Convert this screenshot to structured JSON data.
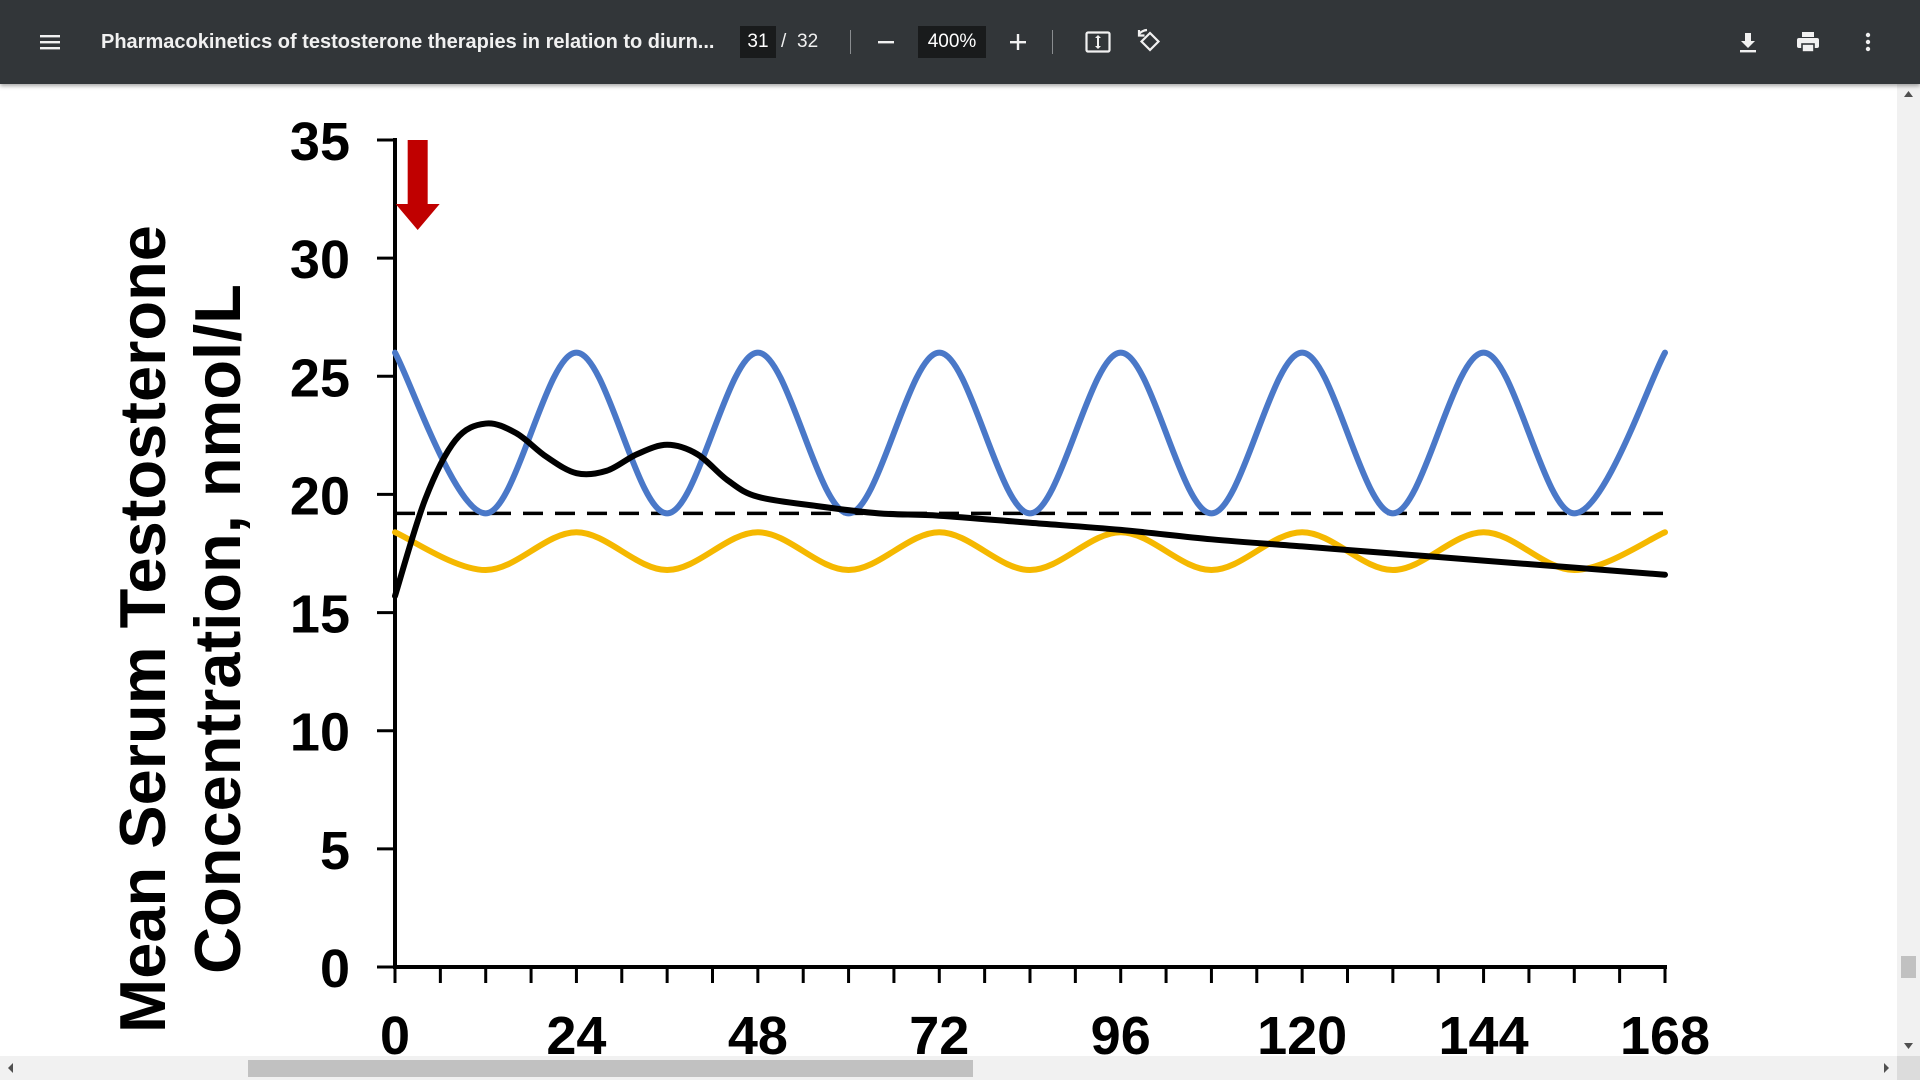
{
  "toolbar": {
    "title": "Pharmacokinetics of testosterone therapies in relation to diurn...",
    "page_current": "31",
    "page_separator": "/",
    "page_total": "32",
    "zoom": "400%",
    "icons": {
      "menu": "menu-icon",
      "zoom_out": "minus-icon",
      "zoom_in": "plus-icon",
      "fit": "fit-to-page-icon",
      "rotate": "rotate-icon",
      "download": "download-icon",
      "print": "print-icon",
      "more": "more-vert-icon"
    }
  },
  "colors": {
    "toolbar_bg": "#323639",
    "blue_series": "#4a78c8",
    "yellow_series": "#f5b800",
    "black_series": "#000000",
    "arrow": "#c00000"
  },
  "chart_data": {
    "type": "line",
    "title": "",
    "ylabel_line1": "Mean Serum Testosterone",
    "ylabel_line2": "Concentration, nmol/L",
    "xlabel": "",
    "x_ticks": [
      "0",
      "24",
      "48",
      "72",
      "96",
      "120",
      "144",
      "168"
    ],
    "y_ticks": [
      "0",
      "5",
      "10",
      "15",
      "20",
      "25",
      "30",
      "35"
    ],
    "xlim": [
      0,
      168
    ],
    "ylim": [
      0,
      35
    ],
    "grid": false,
    "legend": "none",
    "reference_line": {
      "style": "dashed",
      "y": 19.2
    },
    "dose_marker": {
      "x": 3,
      "type": "down-arrow"
    },
    "series": [
      {
        "color": "#4a78c8",
        "x": [
          0,
          12,
          24,
          36,
          48,
          60,
          72,
          84,
          96,
          108,
          120,
          132,
          144,
          156,
          168
        ],
        "y": [
          26,
          19.2,
          26,
          19.2,
          26,
          19.2,
          26,
          19.2,
          26,
          19.2,
          26,
          19.2,
          26,
          19.2,
          26
        ]
      },
      {
        "color": "#f5b800",
        "x": [
          0,
          12,
          24,
          36,
          48,
          60,
          72,
          84,
          96,
          108,
          120,
          132,
          144,
          156,
          168
        ],
        "y": [
          18.4,
          16.8,
          18.4,
          16.8,
          18.4,
          16.8,
          18.4,
          16.8,
          18.4,
          16.8,
          18.4,
          16.8,
          18.4,
          16.8,
          18.4
        ]
      },
      {
        "color": "#000000",
        "x": [
          0,
          4,
          8,
          12,
          16,
          20,
          24,
          28,
          32,
          36,
          40,
          44,
          48,
          56,
          64,
          72,
          84,
          96,
          108,
          120,
          132,
          144,
          156,
          168
        ],
        "y": [
          15.7,
          19.8,
          22.3,
          23.0,
          22.6,
          21.6,
          20.9,
          21.0,
          21.7,
          22.1,
          21.7,
          20.6,
          19.9,
          19.5,
          19.2,
          19.1,
          18.8,
          18.5,
          18.1,
          17.8,
          17.5,
          17.2,
          16.9,
          16.6
        ]
      }
    ]
  }
}
